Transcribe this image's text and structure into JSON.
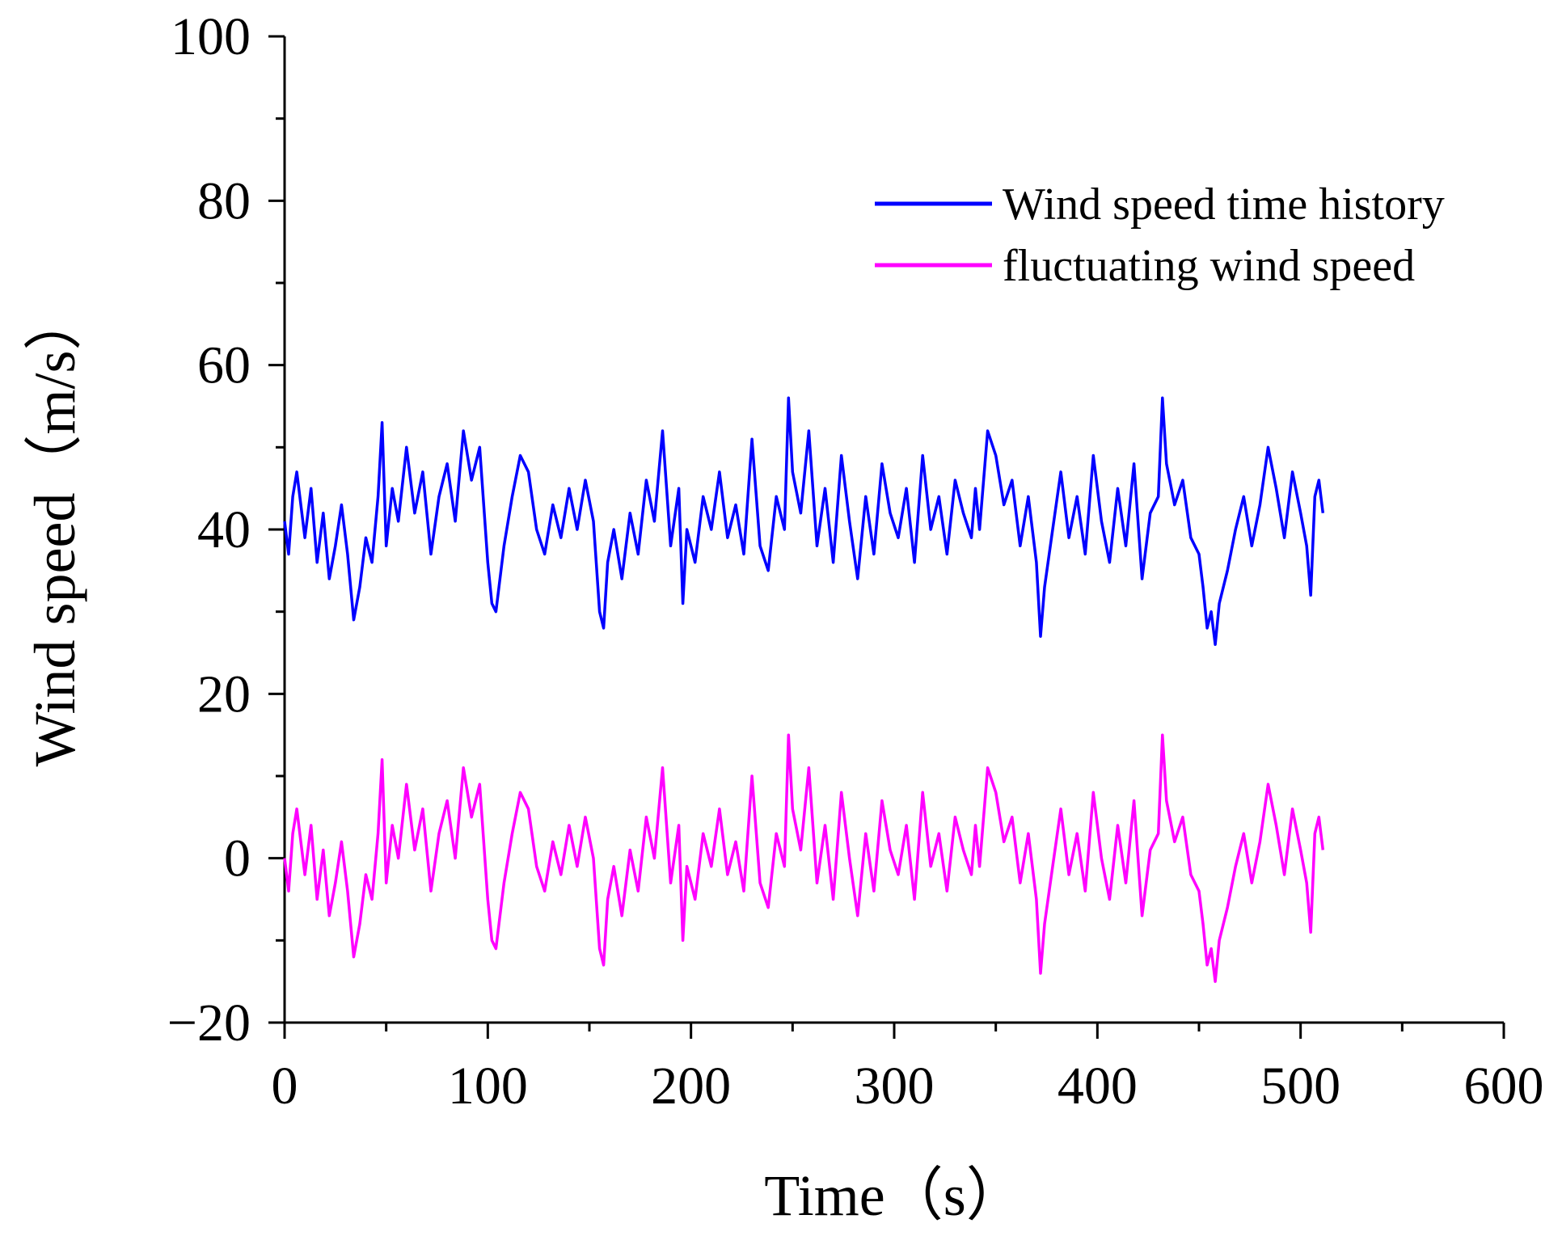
{
  "chart_data": {
    "type": "line",
    "title": "",
    "xlabel": "Time（s）",
    "ylabel": "Wind speed（m/s）",
    "xlim": [
      0,
      600
    ],
    "ylim": [
      -20,
      100
    ],
    "x_ticks": [
      0,
      100,
      200,
      300,
      400,
      500,
      600
    ],
    "y_ticks": [
      -20,
      0,
      20,
      40,
      60,
      80,
      100
    ],
    "x_tick_labels": [
      "0",
      "100",
      "200",
      "300",
      "400",
      "500",
      "600"
    ],
    "y_tick_labels": [
      "−20",
      "0",
      "20",
      "40",
      "60",
      "80",
      "100"
    ],
    "grid": false,
    "legend_position": "top-right",
    "series": [
      {
        "name": "Wind speed time history",
        "color": "#0000ff",
        "x": [
          0,
          2,
          4,
          6,
          8,
          10,
          13,
          16,
          19,
          22,
          25,
          28,
          31,
          34,
          37,
          40,
          43,
          46,
          48,
          50,
          53,
          56,
          60,
          64,
          68,
          72,
          76,
          80,
          84,
          88,
          92,
          96,
          100,
          102,
          104,
          108,
          112,
          116,
          120,
          124,
          128,
          132,
          136,
          140,
          144,
          148,
          152,
          155,
          157,
          159,
          162,
          166,
          170,
          174,
          178,
          182,
          186,
          190,
          194,
          196,
          198,
          202,
          206,
          210,
          214,
          218,
          222,
          226,
          230,
          234,
          238,
          242,
          246,
          248,
          250,
          254,
          258,
          262,
          266,
          270,
          274,
          278,
          282,
          286,
          290,
          294,
          298,
          302,
          306,
          310,
          314,
          318,
          322,
          326,
          330,
          334,
          338,
          340,
          342,
          346,
          350,
          354,
          358,
          362,
          366,
          370,
          372,
          374,
          378,
          382,
          386,
          390,
          394,
          398,
          402,
          406,
          410,
          414,
          418,
          422,
          426,
          430,
          432,
          434,
          438,
          442,
          446,
          450,
          452,
          454,
          456,
          458,
          460,
          464,
          468,
          472,
          476,
          480,
          484,
          488,
          492,
          496,
          500,
          503,
          505,
          507,
          509,
          511
        ],
        "values": [
          41,
          37,
          44,
          47,
          43,
          39,
          45,
          36,
          42,
          34,
          38,
          43,
          37,
          29,
          33,
          39,
          36,
          44,
          53,
          38,
          45,
          41,
          50,
          42,
          47,
          37,
          44,
          48,
          41,
          52,
          46,
          50,
          36,
          31,
          30,
          38,
          44,
          49,
          47,
          40,
          37,
          43,
          39,
          45,
          40,
          46,
          41,
          30,
          28,
          36,
          40,
          34,
          42,
          37,
          46,
          41,
          52,
          38,
          45,
          31,
          40,
          36,
          44,
          40,
          47,
          39,
          43,
          37,
          51,
          38,
          35,
          44,
          40,
          56,
          47,
          42,
          52,
          38,
          45,
          36,
          49,
          41,
          34,
          44,
          37,
          48,
          42,
          39,
          45,
          36,
          49,
          40,
          44,
          37,
          46,
          42,
          39,
          45,
          40,
          52,
          49,
          43,
          46,
          38,
          44,
          36,
          27,
          33,
          40,
          47,
          39,
          44,
          37,
          49,
          41,
          36,
          45,
          38,
          48,
          34,
          42,
          44,
          56,
          48,
          43,
          46,
          39,
          37,
          33,
          28,
          30,
          26,
          31,
          35,
          40,
          44,
          38,
          43,
          50,
          45,
          39,
          47,
          42,
          38,
          32,
          44,
          46,
          42
        ]
      },
      {
        "name": "fluctuating wind speed",
        "color": "#ff00ff",
        "x": [
          0,
          2,
          4,
          6,
          8,
          10,
          13,
          16,
          19,
          22,
          25,
          28,
          31,
          34,
          37,
          40,
          43,
          46,
          48,
          50,
          53,
          56,
          60,
          64,
          68,
          72,
          76,
          80,
          84,
          88,
          92,
          96,
          100,
          102,
          104,
          108,
          112,
          116,
          120,
          124,
          128,
          132,
          136,
          140,
          144,
          148,
          152,
          155,
          157,
          159,
          162,
          166,
          170,
          174,
          178,
          182,
          186,
          190,
          194,
          196,
          198,
          202,
          206,
          210,
          214,
          218,
          222,
          226,
          230,
          234,
          238,
          242,
          246,
          248,
          250,
          254,
          258,
          262,
          266,
          270,
          274,
          278,
          282,
          286,
          290,
          294,
          298,
          302,
          306,
          310,
          314,
          318,
          322,
          326,
          330,
          334,
          338,
          340,
          342,
          346,
          350,
          354,
          358,
          362,
          366,
          370,
          372,
          374,
          378,
          382,
          386,
          390,
          394,
          398,
          402,
          406,
          410,
          414,
          418,
          422,
          426,
          430,
          432,
          434,
          438,
          442,
          446,
          450,
          452,
          454,
          456,
          458,
          460,
          464,
          468,
          472,
          476,
          480,
          484,
          488,
          492,
          496,
          500,
          503,
          505,
          507,
          509,
          511
        ],
        "values": [
          0,
          -4,
          3,
          6,
          2,
          -2,
          4,
          -5,
          1,
          -7,
          -3,
          2,
          -4,
          -12,
          -8,
          -2,
          -5,
          3,
          12,
          -3,
          4,
          0,
          9,
          1,
          6,
          -4,
          3,
          7,
          0,
          11,
          5,
          9,
          -5,
          -10,
          -11,
          -3,
          3,
          8,
          6,
          -1,
          -4,
          2,
          -2,
          4,
          -1,
          5,
          0,
          -11,
          -13,
          -5,
          -1,
          -7,
          1,
          -4,
          5,
          0,
          11,
          -3,
          4,
          -10,
          -1,
          -5,
          3,
          -1,
          6,
          -2,
          2,
          -4,
          10,
          -3,
          -6,
          3,
          -1,
          15,
          6,
          1,
          11,
          -3,
          4,
          -5,
          8,
          0,
          -7,
          3,
          -4,
          7,
          1,
          -2,
          4,
          -5,
          8,
          -1,
          3,
          -4,
          5,
          1,
          -2,
          4,
          -1,
          11,
          8,
          2,
          5,
          -3,
          3,
          -5,
          -14,
          -8,
          -1,
          6,
          -2,
          3,
          -4,
          8,
          0,
          -5,
          4,
          -3,
          7,
          -7,
          1,
          3,
          15,
          7,
          2,
          5,
          -2,
          -4,
          -8,
          -13,
          -11,
          -15,
          -10,
          -6,
          -1,
          3,
          -3,
          2,
          9,
          4,
          -2,
          6,
          1,
          -3,
          -9,
          3,
          5,
          1
        ]
      }
    ]
  }
}
